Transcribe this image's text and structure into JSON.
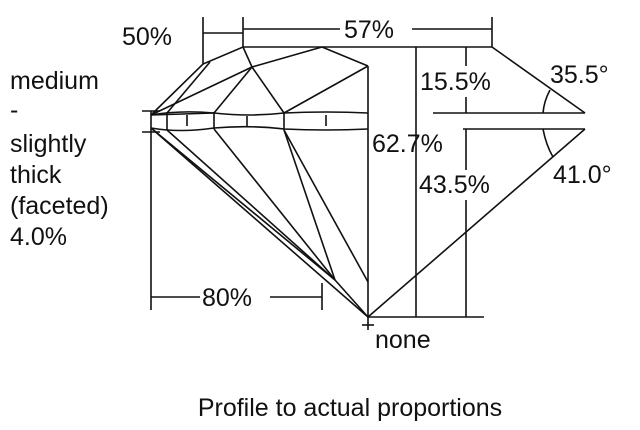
{
  "labels": {
    "lower_half_length": "50%",
    "table": "57%",
    "crown_height": "15.5%",
    "crown_angle": "35.5°",
    "total_depth": "62.7%",
    "pavilion_depth": "43.5%",
    "pavilion_angle": "41.0°",
    "star_length": "80%",
    "culet": "none",
    "girdle": [
      "medium",
      "-",
      "slightly",
      "thick",
      "(faceted)",
      "4.0%"
    ]
  },
  "caption": "Profile to actual proportions"
}
